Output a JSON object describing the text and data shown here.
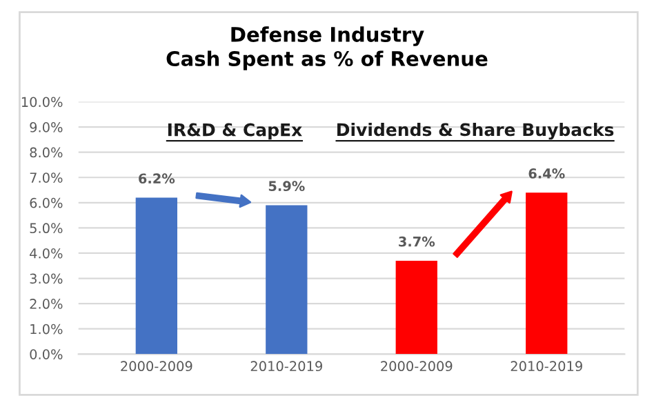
{
  "chart_data": {
    "type": "bar",
    "title": "Defense Industry\nCash Spent as % of Revenue",
    "categories": [
      "2000-2009",
      "2010-2019",
      "2000-2009",
      "2010-2019"
    ],
    "values": [
      6.2,
      5.9,
      3.7,
      6.4
    ],
    "colors": [
      "#4472c4",
      "#4472c4",
      "#ff0000",
      "#ff0000"
    ],
    "value_labels": [
      "6.2%",
      "5.9%",
      "3.7%",
      "6.4%"
    ],
    "annotations": [
      "IR&D & CapEx",
      "Dividends & Share Buybacks"
    ],
    "ylim": [
      0,
      10
    ],
    "yticks": [
      {
        "value": 0,
        "label": "0.0%"
      },
      {
        "value": 1,
        "label": "1.0%"
      },
      {
        "value": 2,
        "label": "2.0%"
      },
      {
        "value": 3,
        "label": "3.0%"
      },
      {
        "value": 4,
        "label": "4.0%"
      },
      {
        "value": 5,
        "label": "5.0%"
      },
      {
        "value": 6,
        "label": "6.0%"
      },
      {
        "value": 7,
        "label": "7.0%"
      },
      {
        "value": 8,
        "label": "8.0%"
      },
      {
        "value": 9,
        "label": "9.0%"
      },
      {
        "value": 10,
        "label": "10.0%"
      }
    ],
    "grid": "y"
  }
}
